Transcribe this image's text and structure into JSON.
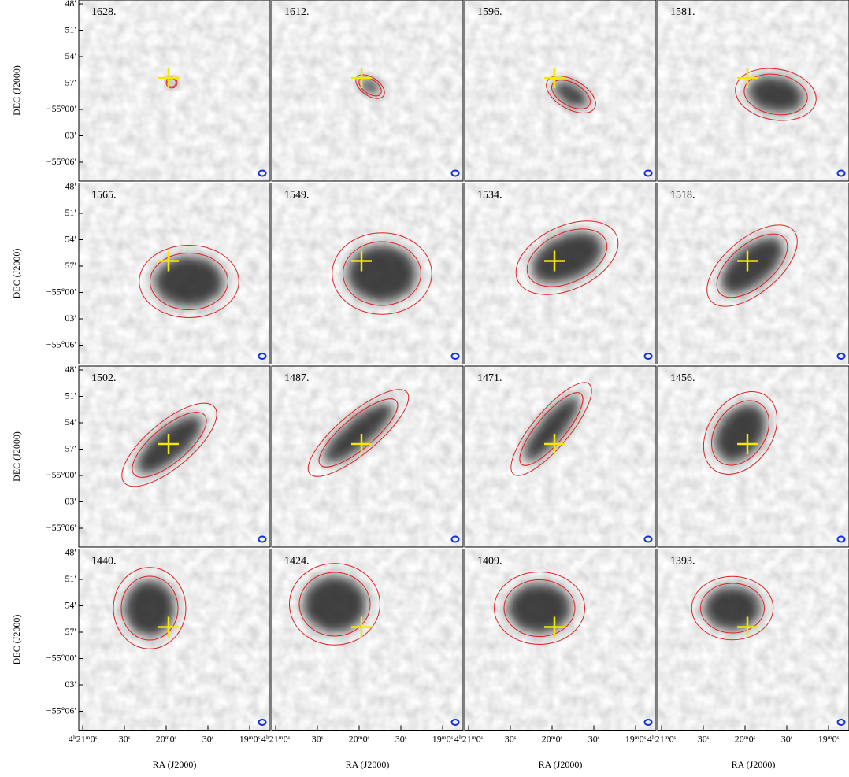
{
  "channels": [
    "1628.",
    "1612.",
    "1596.",
    "1581.",
    "1565.",
    "1549.",
    "1534.",
    "1518.",
    "1502.",
    "1487.",
    "1471.",
    "1456.",
    "1440.",
    "1424.",
    "1409.",
    "1393."
  ],
  "y_axis": {
    "label": "DEC (J2000)",
    "ticks": [
      "48′",
      "51′",
      "54′",
      "57′",
      "−55°00′",
      "03′",
      "−55°06′"
    ]
  },
  "x_axis": {
    "label": "RA (J2000)",
    "ticks": [
      "4ʰ21ᵐ0ˢ",
      "30ˢ",
      "20ᵐ0ˢ",
      "30ˢ",
      "19ᵐ0ˢ"
    ]
  }
}
